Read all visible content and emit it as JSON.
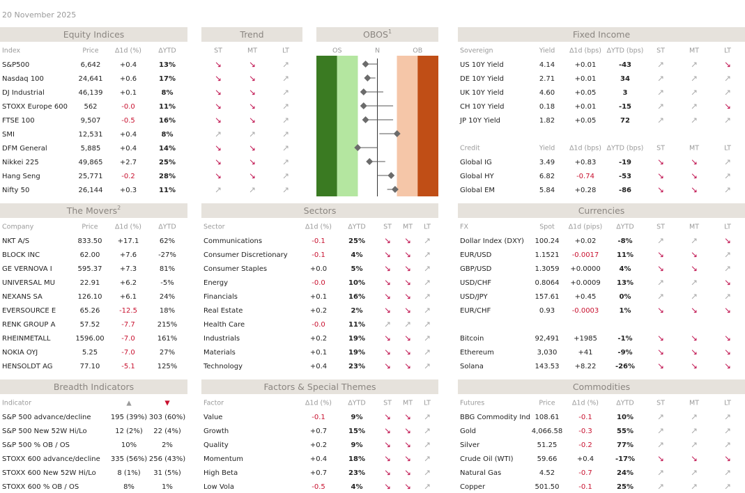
{
  "date": "20 November 2025",
  "panels": [
    {
      "title": "Equity Indices",
      "sections": [
        {
          "columns": [
            "Index",
            "Price",
            "∆1d (%)",
            "∆YTD"
          ],
          "rows": [
            [
              "S&P500",
              "6,642",
              "+0.4",
              "13%"
            ],
            [
              "Nasdaq 100",
              "24,641",
              "+0.6",
              "17%"
            ],
            [
              "DJ Industrial",
              "46,139",
              "+0.1",
              "8%"
            ],
            [
              "STOXX Europe 600",
              "562",
              "-0.0",
              "11%"
            ],
            [
              "FTSE 100",
              "9,507",
              "-0.5",
              "16%"
            ],
            [
              "SMI",
              "12,531",
              "+0.4",
              "8%"
            ],
            [
              "DFM General",
              "5,885",
              "+0.4",
              "14%"
            ],
            [
              "Nikkei 225",
              "49,865",
              "+2.7",
              "25%"
            ],
            [
              "Hang Seng",
              "25,771",
              "-0.2",
              "28%"
            ],
            [
              "Nifty 50",
              "26,144",
              "+0.3",
              "11%"
            ]
          ]
        }
      ]
    },
    {
      "title": "Trend",
      "sections": [
        {
          "columns": [
            "ST",
            "MT",
            "LT"
          ],
          "rows": [
            [
              "↘",
              "↘",
              "↗"
            ],
            [
              "↘",
              "↘",
              "↗"
            ],
            [
              "↘",
              "↘",
              "↗"
            ],
            [
              "↘",
              "↘",
              "↗"
            ],
            [
              "↘",
              "↘",
              "↗"
            ],
            [
              "↗",
              "↗",
              "↗"
            ],
            [
              "↘",
              "↘",
              "↗"
            ],
            [
              "↘",
              "↘",
              "↗"
            ],
            [
              "↘",
              "↘",
              "↗"
            ],
            [
              "↗",
              "↗",
              "↗"
            ]
          ]
        }
      ]
    },
    {
      "title": "Fixed Income",
      "sections": [
        {
          "columns": [
            "Sovereign",
            "Yield",
            "∆1d (bps)",
            "∆YTD (bps)",
            "ST",
            "MT",
            "LT"
          ],
          "rows": [
            [
              "US 10Y Yield",
              "4.14",
              "+0.01",
              "-43",
              "↗",
              "↗",
              "↘"
            ],
            [
              "DE 10Y Yield",
              "2.71",
              "+0.01",
              "34",
              "↗",
              "↗",
              "↗"
            ],
            [
              "UK 10Y Yield",
              "4.60",
              "+0.05",
              "3",
              "↗",
              "↗",
              "↗"
            ],
            [
              "CH 10Y Yield",
              "0.18",
              "+0.01",
              "-15",
              "↗",
              "↗",
              "↘"
            ],
            [
              "JP 10Y Yield",
              "1.82",
              "+0.05",
              "72",
              "↗",
              "↗",
              "↗"
            ]
          ]
        },
        {
          "columns": [
            "Credit",
            "Yield",
            "∆1d (bps)",
            "∆YTD (bps)",
            "ST",
            "MT",
            "LT"
          ],
          "rows": [
            [
              "Global IG",
              "3.49",
              "+0.83",
              "-19",
              "↘",
              "↘",
              "↗"
            ],
            [
              "Global HY",
              "6.82",
              "-0.74",
              "-53",
              "↘",
              "↘",
              "↗"
            ],
            [
              "Global EM",
              "5.84",
              "+0.28",
              "-86",
              "↘",
              "↘",
              "↗"
            ]
          ]
        }
      ]
    },
    {
      "title": "The Movers",
      "sup": "2",
      "sections": [
        {
          "columns": [
            "Company",
            "Price",
            "∆1d (%)",
            "∆YTD"
          ],
          "rows": [
            [
              "NKT A/S",
              "833.50",
              "+17.1",
              "62%"
            ],
            [
              "BLOCK INC",
              "62.00",
              "+7.6",
              "-27%"
            ],
            [
              "GE VERNOVA I",
              "595.37",
              "+7.3",
              "81%"
            ],
            [
              "UNIVERSAL MU",
              "22.91",
              "+6.2",
              "-5%"
            ],
            [
              "NEXANS SA",
              "126.10",
              "+6.1",
              "24%"
            ],
            [
              "EVERSOURCE E",
              "65.26",
              "-12.5",
              "18%"
            ],
            [
              "RENK GROUP A",
              "57.52",
              "-7.7",
              "215%"
            ],
            [
              "RHEINMETALL",
              "1596.00",
              "-7.0",
              "161%"
            ],
            [
              "NOKIA OYJ",
              "5.25",
              "-7.0",
              "27%"
            ],
            [
              "HENSOLDT AG",
              "77.10",
              "-5.1",
              "125%"
            ]
          ]
        }
      ]
    },
    {
      "title": "Sectors",
      "sections": [
        {
          "columns": [
            "Sector",
            "∆1d (%)",
            "∆YTD",
            "ST",
            "MT",
            "LT"
          ],
          "rows": [
            [
              "Communications",
              "-0.1",
              "25%",
              "↘",
              "↘",
              "↗"
            ],
            [
              "Consumer Discretionary",
              "-0.1",
              "4%",
              "↘",
              "↘",
              "↗"
            ],
            [
              "Consumer Staples",
              "+0.0",
              "5%",
              "↘",
              "↘",
              "↗"
            ],
            [
              "Energy",
              "-0.0",
              "10%",
              "↘",
              "↘",
              "↗"
            ],
            [
              "Financials",
              "+0.1",
              "16%",
              "↘",
              "↘",
              "↗"
            ],
            [
              "Real Estate",
              "+0.2",
              "2%",
              "↘",
              "↘",
              "↗"
            ],
            [
              "Health Care",
              "-0.0",
              "11%",
              "↗",
              "↗",
              "↗"
            ],
            [
              "Industrials",
              "+0.2",
              "19%",
              "↘",
              "↘",
              "↗"
            ],
            [
              "Materials",
              "+0.1",
              "19%",
              "↘",
              "↘",
              "↗"
            ],
            [
              "Technology",
              "+0.4",
              "23%",
              "↘",
              "↘",
              "↗"
            ]
          ]
        }
      ]
    },
    {
      "title": "Currencies",
      "sections": [
        {
          "columns": [
            "FX",
            "Spot",
            "∆1d (pips)",
            "∆YTD",
            "ST",
            "MT",
            "LT"
          ],
          "rows": [
            [
              "Dollar Index (DXY)",
              "100.24",
              "+0.02",
              "-8%",
              "↗",
              "↗",
              "↘"
            ],
            [
              "EUR/USD",
              "1.1521",
              "-0.0017",
              "11%",
              "↘",
              "↘",
              "↗"
            ],
            [
              "GBP/USD",
              "1.3059",
              "+0.0000",
              "4%",
              "↘",
              "↘",
              "↗"
            ],
            [
              "USD/CHF",
              "0.8064",
              "+0.0009",
              "13%",
              "↗",
              "↗",
              "↘"
            ],
            [
              "USD/JPY",
              "157.61",
              "+0.45",
              "0%",
              "↗",
              "↗",
              "↗"
            ],
            [
              "EUR/CHF",
              "0.93",
              "-0.0003",
              "1%",
              "↘",
              "↘",
              "↘"
            ]
          ]
        },
        {
          "rows": [
            [
              "Bitcoin",
              "92,491",
              "+1985",
              "-1%",
              "↘",
              "↘",
              "↘"
            ],
            [
              "Ethereum",
              "3,030",
              "+41",
              "-9%",
              "↘",
              "↘",
              "↘"
            ],
            [
              "Solana",
              "143.53",
              "+8.22",
              "-26%",
              "↘",
              "↘",
              "↘"
            ]
          ]
        }
      ]
    },
    {
      "title": "Breadth Indicators",
      "sections": [
        {
          "columns": [
            "Indicator",
            "▲",
            "▼"
          ],
          "rows": [
            [
              "S&P 500 advance/decline",
              "195 (39%)",
              "303 (60%)"
            ],
            [
              "S&P 500 New 52W Hi/Lo",
              "12 (2%)",
              "22 (4%)"
            ],
            [
              "S&P 500 % OB / OS",
              "10%",
              "2%"
            ],
            [
              "STOXX 600 advance/decline",
              "335 (56%)",
              "256 (43%)"
            ],
            [
              "STOXX 600 New 52W Hi/Lo",
              "8 (1%)",
              "31 (5%)"
            ],
            [
              "STOXX 600 % OB / OS",
              "8%",
              "1%"
            ]
          ]
        }
      ]
    },
    {
      "title": "Factors & Special Themes",
      "sections": [
        {
          "columns": [
            "Factor",
            "∆1d (%)",
            "∆YTD",
            "ST",
            "MT",
            "LT"
          ],
          "rows": [
            [
              "Value",
              "-0.1",
              "9%",
              "↘",
              "↘",
              "↗"
            ],
            [
              "Growth",
              "+0.7",
              "15%",
              "↘",
              "↘",
              "↗"
            ],
            [
              "Quality",
              "+0.2",
              "9%",
              "↘",
              "↘",
              "↗"
            ],
            [
              "Momentum",
              "+0.4",
              "18%",
              "↘",
              "↘",
              "↗"
            ],
            [
              "High Beta",
              "+0.7",
              "23%",
              "↘",
              "↘",
              "↗"
            ],
            [
              "Low Vola",
              "-0.5",
              "4%",
              "↘",
              "↘",
              "↗"
            ]
          ]
        }
      ]
    },
    {
      "title": "Commodities",
      "sections": [
        {
          "columns": [
            "Futures",
            "Price",
            "∆1d (%)",
            "∆YTD",
            "ST",
            "MT",
            "LT"
          ],
          "rows": [
            [
              "BBG Commodity Ind",
              "108.61",
              "-0.1",
              "10%",
              "↗",
              "↗",
              "↗"
            ],
            [
              "Gold",
              "4,066.58",
              "-0.3",
              "55%",
              "↗",
              "↗",
              "↗"
            ],
            [
              "Silver",
              "51.25",
              "-0.2",
              "77%",
              "↗",
              "↗",
              "↗"
            ],
            [
              "Crude Oil (WTI)",
              "59.66",
              "+0.4",
              "-17%",
              "↘",
              "↘",
              "↘"
            ],
            [
              "Natural Gas",
              "4.52",
              "-0.7",
              "24%",
              "↗",
              "↗",
              "↗"
            ],
            [
              "Copper",
              "501.50",
              "-0.1",
              "25%",
              "↗",
              "↗",
              "↗"
            ]
          ]
        }
      ]
    }
  ],
  "obos": {
    "title": "OBOS",
    "sup": "1",
    "labels": [
      "OS",
      "N",
      "OB"
    ],
    "xlim": [
      -3.1,
      3.1
    ],
    "points": [
      {
        "value": -0.6,
        "low": -0.6,
        "high": 0
      },
      {
        "value": -0.5,
        "low": -0.6,
        "high": -0.1
      },
      {
        "value": -0.7,
        "low": -0.7,
        "high": 0.3
      },
      {
        "value": -0.7,
        "low": -0.7,
        "high": 0.8
      },
      {
        "value": -0.6,
        "low": -0.6,
        "high": 0.8
      },
      {
        "value": 1.0,
        "low": 0.1,
        "high": 1.0
      },
      {
        "value": -1.0,
        "low": -1.0,
        "high": 0
      },
      {
        "value": -0.4,
        "low": -0.4,
        "high": 0.4
      },
      {
        "value": 0.7,
        "low": 0,
        "high": 0.8
      },
      {
        "value": 0.9,
        "low": 0.5,
        "high": 1.0
      }
    ]
  }
}
